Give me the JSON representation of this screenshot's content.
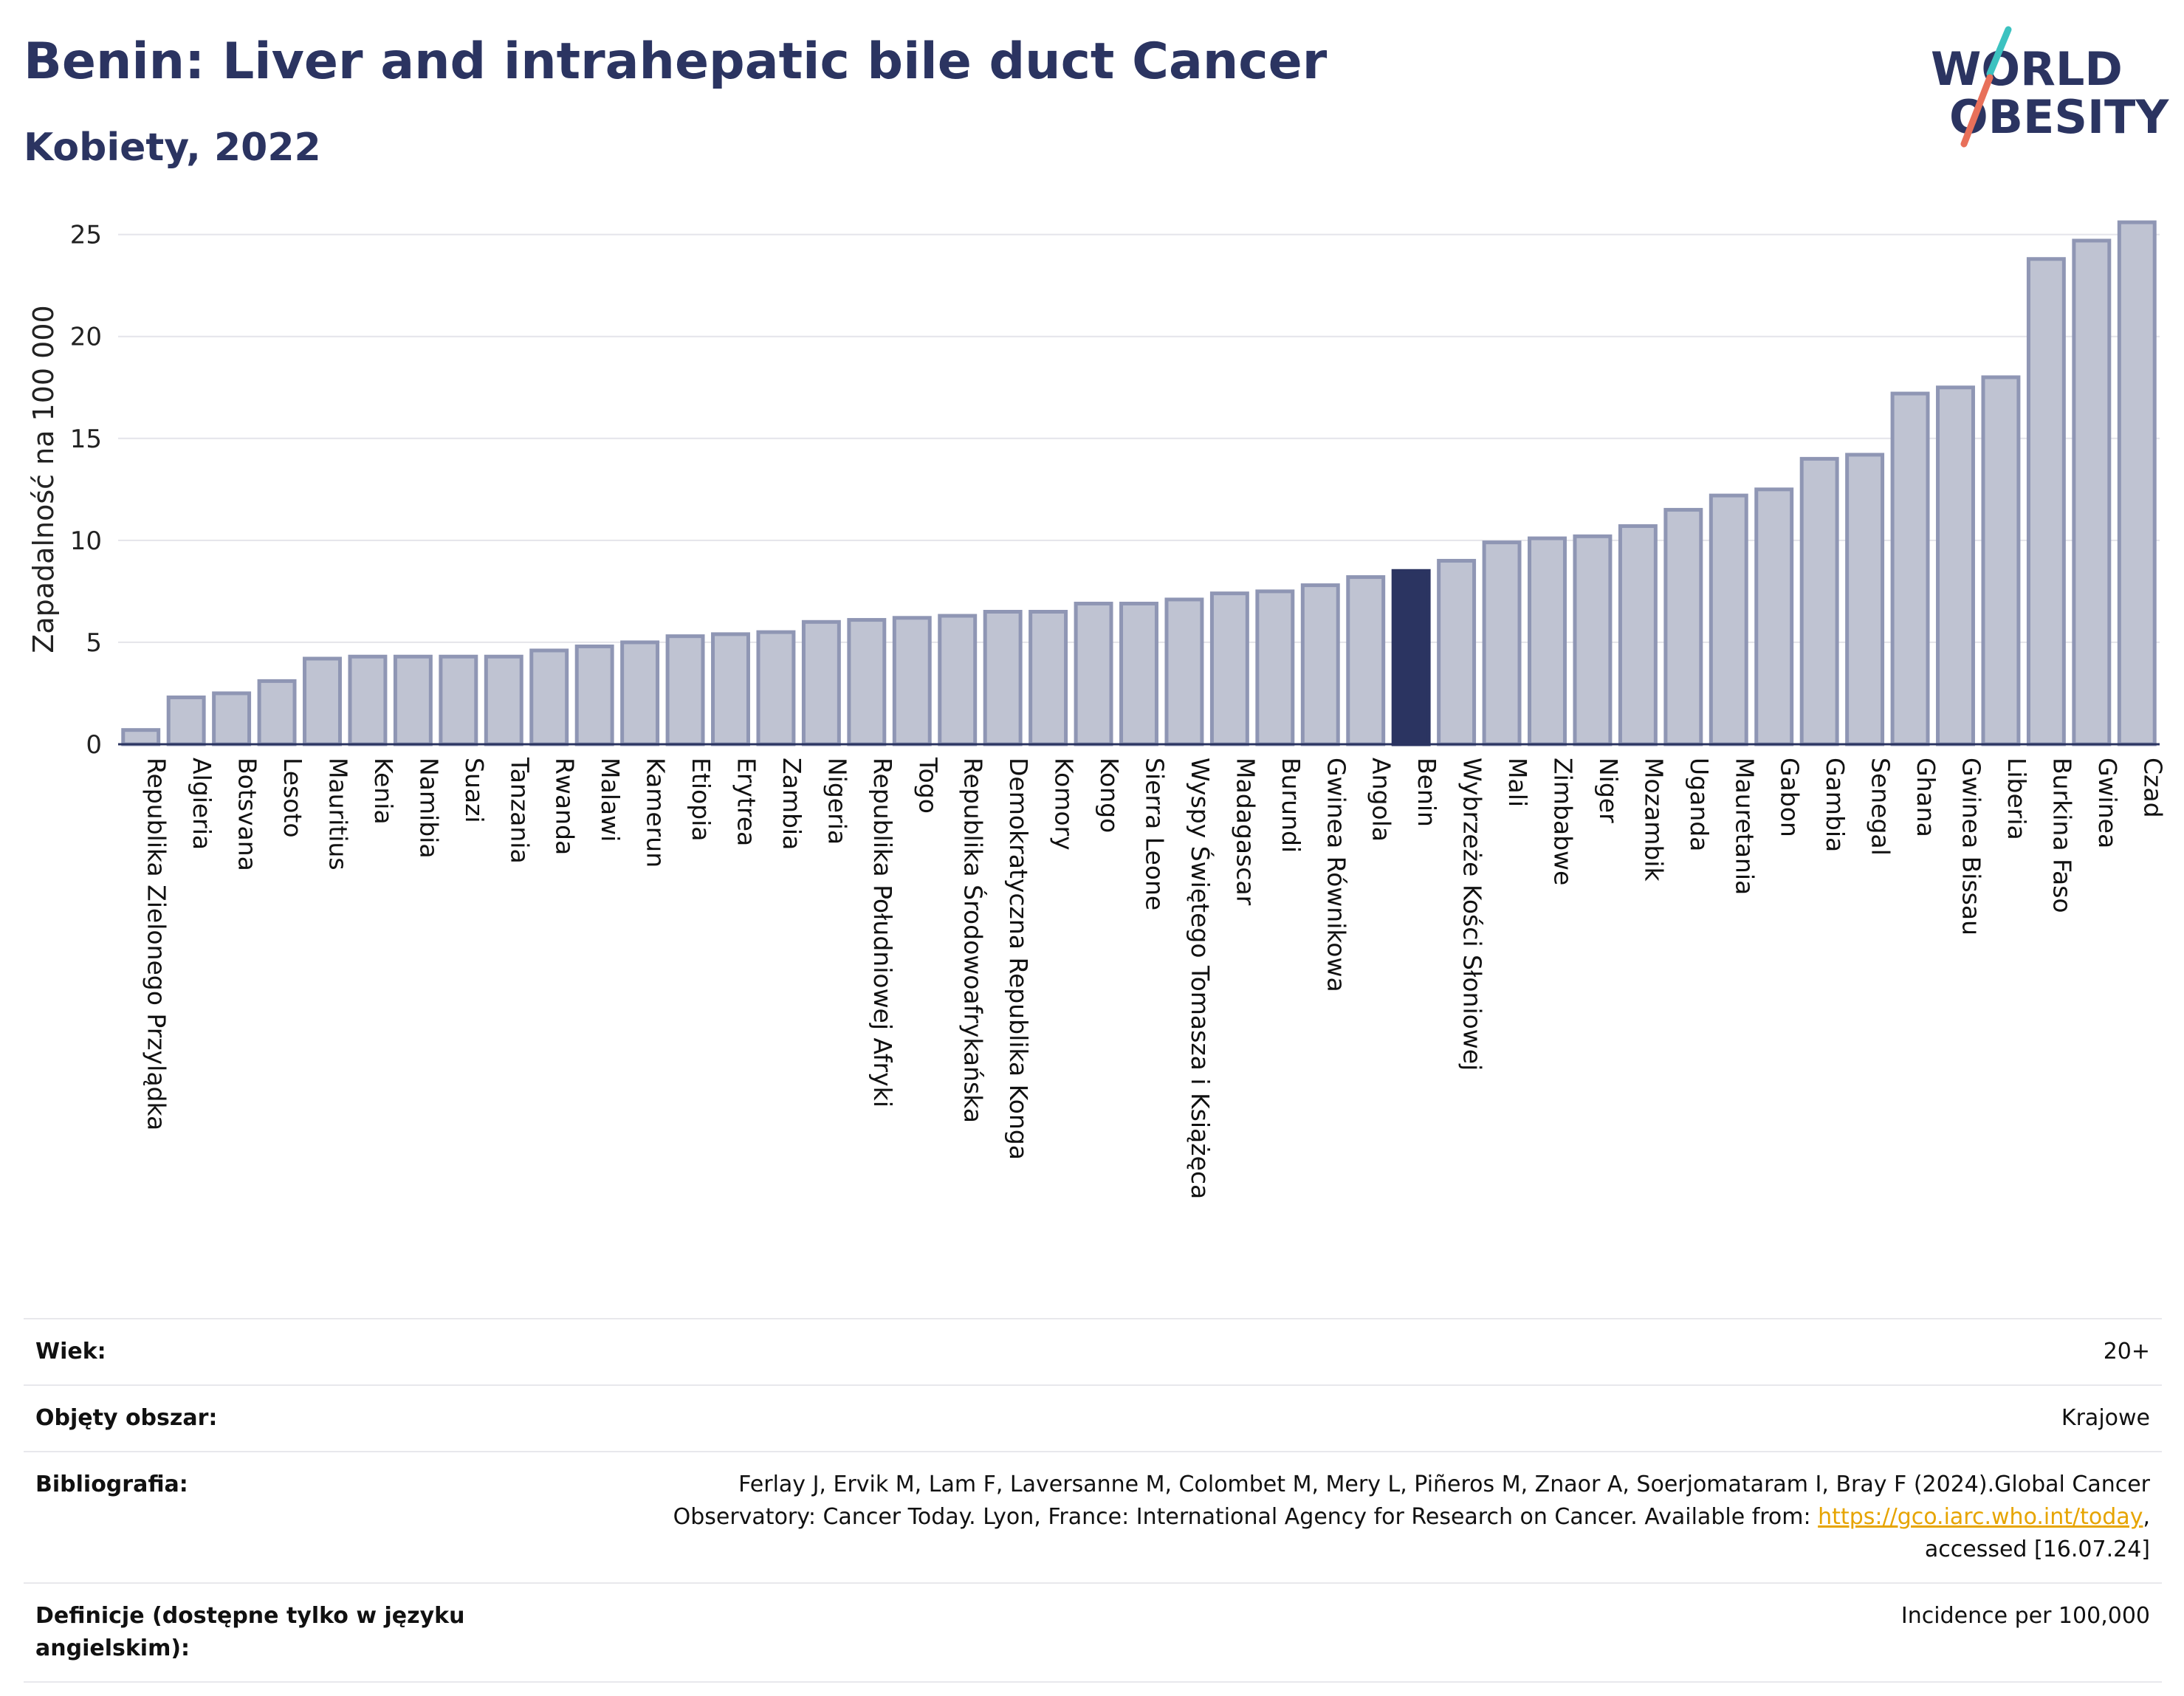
{
  "header": {
    "title": "Benin: Liver and intrahepatic bile duct Cancer",
    "subtitle": "Kobiety, 2022"
  },
  "logo": {
    "line1": "WORLD",
    "line2": "OBESITY"
  },
  "colors": {
    "bar": "#bfc3d2",
    "bar_stroke": "#8f96b4",
    "highlight": "#2b3461",
    "text": "#2b3461"
  },
  "chart_data": {
    "type": "bar",
    "ylabel": "Zapadalność na 100 000",
    "ylim": [
      0,
      26
    ],
    "yticks": [
      0,
      5,
      10,
      15,
      20,
      25
    ],
    "grid": true,
    "highlight": "Benin",
    "categories": [
      "Republika Zielonego Przylądka",
      "Algieria",
      "Botsvana",
      "Lesoto",
      "Mauritius",
      "Kenia",
      "Namibia",
      "Suazi",
      "Tanzania",
      "Rwanda",
      "Malawi",
      "Kamerun",
      "Etiopia",
      "Erytrea",
      "Zambia",
      "Nigeria",
      "Republika Południowej Afryki",
      "Togo",
      "Republika Środowoafrykańska",
      "Demokratyczna Republika Konga",
      "Komory",
      "Kongo",
      "Sierra Leone",
      "Wyspy Świętego Tomasza i Książęca",
      "Madagascar",
      "Burundi",
      "Gwinea Równikowa",
      "Angola",
      "Benin",
      "Wybrzeże Kości Słoniowej",
      "Mali",
      "Zimbabwe",
      "Niger",
      "Mozambik",
      "Uganda",
      "Mauretania",
      "Gabon",
      "Gambia",
      "Senegal",
      "Ghana",
      "Gwinea Bissau",
      "Liberia",
      "Burkina Faso",
      "Gwinea",
      "Czad"
    ],
    "values": [
      0.7,
      2.3,
      2.5,
      3.1,
      4.2,
      4.3,
      4.3,
      4.3,
      4.3,
      4.6,
      4.8,
      5.0,
      5.3,
      5.4,
      5.5,
      6.0,
      6.1,
      6.2,
      6.3,
      6.5,
      6.5,
      6.9,
      6.9,
      7.1,
      7.4,
      7.5,
      7.8,
      8.2,
      8.5,
      9.0,
      9.9,
      10.1,
      10.2,
      10.7,
      11.5,
      12.2,
      12.5,
      14.0,
      14.2,
      17.2,
      17.5,
      18.0,
      23.8,
      24.7,
      25.6
    ]
  },
  "meta": {
    "age_label": "Wiek:",
    "age_value": "20+",
    "area_label": "Objęty obszar:",
    "area_value": "Krajowe",
    "bib_label": "Bibliografia:",
    "bib_text": "Ferlay J, Ervik M, Lam F, Laversanne M, Colombet M, Mery L, Piñeros M, Znaor A, Soerjomataram I, Bray F (2024).Global Cancer Observatory: Cancer Today. Lyon, France: International Agency for Research on Cancer. Available from: ",
    "bib_link": "https://gco.iarc.who.int/today",
    "bib_tail": ", accessed [16.07.24]",
    "def_label": "Definicje (dostępne tylko w języku angielskim):",
    "def_value": "Incidence per 100,000"
  }
}
